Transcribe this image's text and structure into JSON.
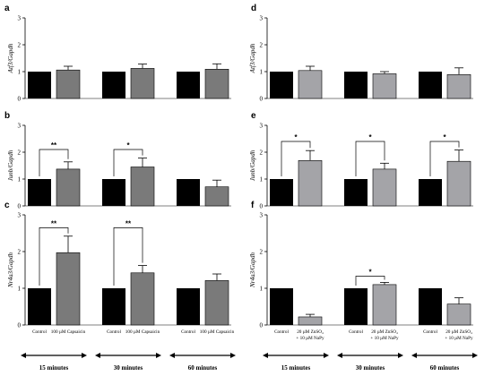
{
  "colors": {
    "control": "#000000",
    "capsaicin": "#7a7a7a",
    "znso4": "#a4a4a8"
  },
  "time_labels": [
    "15 minutes",
    "30 minutes",
    "60 minutes"
  ],
  "chart_data": [
    {
      "panel": "a",
      "type": "bar",
      "ylabel": "Atf3/Gapdh",
      "ylim": [
        0,
        3
      ],
      "yticks": [
        "0",
        "1",
        "2",
        "3"
      ],
      "treatment": "capsaicin",
      "groups": [
        {
          "control": 1.0,
          "treated": 1.06,
          "err": 0.14
        },
        {
          "control": 1.0,
          "treated": 1.12,
          "err": 0.16
        },
        {
          "control": 1.0,
          "treated": 1.09,
          "err": 0.2
        }
      ],
      "sig": []
    },
    {
      "panel": "b",
      "type": "bar",
      "ylabel": "Junb/Gapdh",
      "ylim": [
        0,
        3
      ],
      "yticks": [
        "0",
        "1",
        "2",
        "3"
      ],
      "treatment": "capsaicin",
      "groups": [
        {
          "control": 1.0,
          "treated": 1.37,
          "err": 0.27
        },
        {
          "control": 1.0,
          "treated": 1.45,
          "err": 0.33
        },
        {
          "control": 1.0,
          "treated": 0.71,
          "err": 0.25
        }
      ],
      "sig": [
        {
          "group": 0,
          "label": "**",
          "y": 2.1
        },
        {
          "group": 1,
          "label": "*",
          "y": 2.1
        }
      ]
    },
    {
      "panel": "c",
      "type": "bar",
      "ylabel": "Nr4a3/Gapdh",
      "ylim": [
        0,
        3
      ],
      "yticks": [
        "0",
        "1",
        "2",
        "3"
      ],
      "treatment": "capsaicin",
      "groups": [
        {
          "control": 1.0,
          "treated": 1.97,
          "err": 0.45
        },
        {
          "control": 1.0,
          "treated": 1.42,
          "err": 0.2
        },
        {
          "control": 1.0,
          "treated": 1.21,
          "err": 0.18
        }
      ],
      "sig": [
        {
          "group": 0,
          "label": "**",
          "y": 2.65
        },
        {
          "group": 1,
          "label": "**",
          "y": 2.65
        }
      ],
      "categories": [
        "Control",
        "100 µM Capsaicin"
      ]
    },
    {
      "panel": "d",
      "type": "bar",
      "ylabel": "Atf3/Gapdh",
      "ylim": [
        0,
        3
      ],
      "yticks": [
        "0",
        "1",
        "2",
        "3"
      ],
      "treatment": "znso4",
      "groups": [
        {
          "control": 1.0,
          "treated": 1.04,
          "err": 0.16
        },
        {
          "control": 1.0,
          "treated": 0.92,
          "err": 0.08
        },
        {
          "control": 1.0,
          "treated": 0.89,
          "err": 0.25
        }
      ],
      "sig": []
    },
    {
      "panel": "e",
      "type": "bar",
      "ylabel": "Junb/Gapdh",
      "ylim": [
        0,
        3
      ],
      "yticks": [
        "0",
        "1",
        "2",
        "3"
      ],
      "treatment": "znso4",
      "groups": [
        {
          "control": 1.0,
          "treated": 1.69,
          "err": 0.37
        },
        {
          "control": 1.0,
          "treated": 1.37,
          "err": 0.22
        },
        {
          "control": 1.0,
          "treated": 1.66,
          "err": 0.42
        }
      ],
      "sig": [
        {
          "group": 0,
          "label": "*",
          "y": 2.4
        },
        {
          "group": 1,
          "label": "*",
          "y": 2.4
        },
        {
          "group": 2,
          "label": "*",
          "y": 2.4
        }
      ]
    },
    {
      "panel": "f",
      "type": "bar",
      "ylabel": "Nr4a3/Gapdh",
      "ylim": [
        0,
        3
      ],
      "yticks": [
        "0",
        "1",
        "2",
        "3"
      ],
      "treatment": "znso4",
      "groups": [
        {
          "control": 1.0,
          "treated": 0.22,
          "err": 0.07
        },
        {
          "control": 1.0,
          "treated": 1.1,
          "err": 0.06
        },
        {
          "control": 1.0,
          "treated": 0.57,
          "err": 0.17
        }
      ],
      "sig": [
        {
          "group": 1,
          "label": "*",
          "y": 1.33
        }
      ],
      "categories": [
        "Control",
        "20 µM ZnSO₄",
        "+ 10 µM NaPy"
      ]
    }
  ]
}
